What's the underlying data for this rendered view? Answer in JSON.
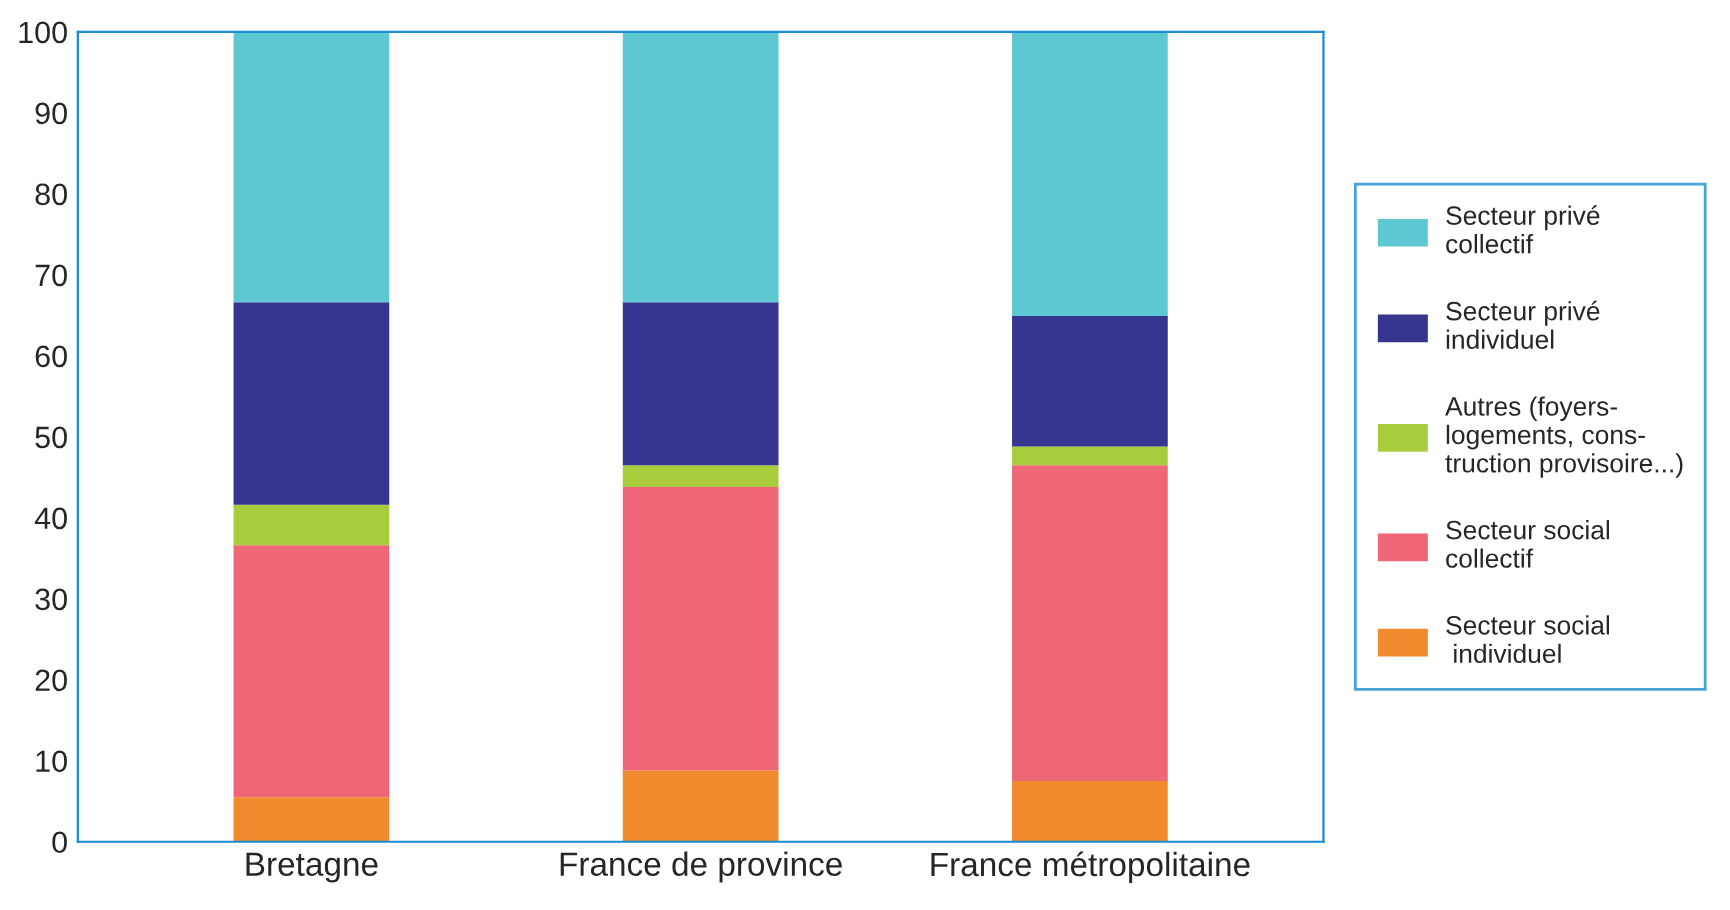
{
  "chart_data": {
    "type": "bar",
    "stacked": true,
    "categories": [
      "Bretagne",
      "France de province",
      "France métropolitaine"
    ],
    "series": [
      {
        "name": "Secteur social\n individuel",
        "color": "#f08a2c",
        "values": [
          5.5,
          8.8,
          7.5
        ]
      },
      {
        "name": "Secteur social\ncollectif",
        "color": "#ef6677",
        "values": [
          31.1,
          35.0,
          39.0
        ]
      },
      {
        "name": "Autres (foyers-\nlogements, cons-\ntruction provisoire...)",
        "color": "#a8cc3c",
        "values": [
          5.0,
          2.7,
          2.3
        ]
      },
      {
        "name": "Secteur privé\nindividuel",
        "color": "#36358f",
        "values": [
          25.0,
          20.1,
          16.1
        ]
      },
      {
        "name": "Secteur privé\ncollectif",
        "color": "#5ec8d2",
        "values": [
          33.4,
          33.4,
          35.1
        ]
      }
    ],
    "ylim": [
      0,
      100
    ],
    "yticks": [
      0,
      10,
      20,
      30,
      40,
      50,
      60,
      70,
      80,
      90,
      100
    ],
    "grid": false,
    "legend": "right"
  }
}
